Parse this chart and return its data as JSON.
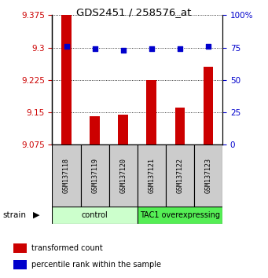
{
  "title": "GDS2451 / 258576_at",
  "samples": [
    "GSM137118",
    "GSM137119",
    "GSM137120",
    "GSM137121",
    "GSM137122",
    "GSM137123"
  ],
  "bar_values": [
    9.375,
    9.14,
    9.145,
    9.225,
    9.16,
    9.255
  ],
  "percentile_values": [
    76,
    74,
    73,
    74,
    74,
    76
  ],
  "ylim": [
    9.075,
    9.375
  ],
  "ylim_right": [
    0,
    100
  ],
  "yticks_left": [
    9.075,
    9.15,
    9.225,
    9.3,
    9.375
  ],
  "yticks_right": [
    0,
    25,
    50,
    75,
    100
  ],
  "bar_color": "#cc0000",
  "dot_color": "#0000cc",
  "groups": [
    {
      "label": "control",
      "start": 0,
      "end": 3,
      "color": "#ccffcc"
    },
    {
      "label": "TAC1 overexpressing",
      "start": 3,
      "end": 6,
      "color": "#55ee55"
    }
  ],
  "strain_label": "strain",
  "legend_items": [
    {
      "color": "#cc0000",
      "label": "transformed count"
    },
    {
      "color": "#0000cc",
      "label": "percentile rank within the sample"
    }
  ],
  "tick_color_left": "#cc0000",
  "tick_color_right": "#0000cc",
  "sample_box_color": "#cccccc",
  "fig_width": 3.41,
  "fig_height": 3.54,
  "dpi": 100
}
